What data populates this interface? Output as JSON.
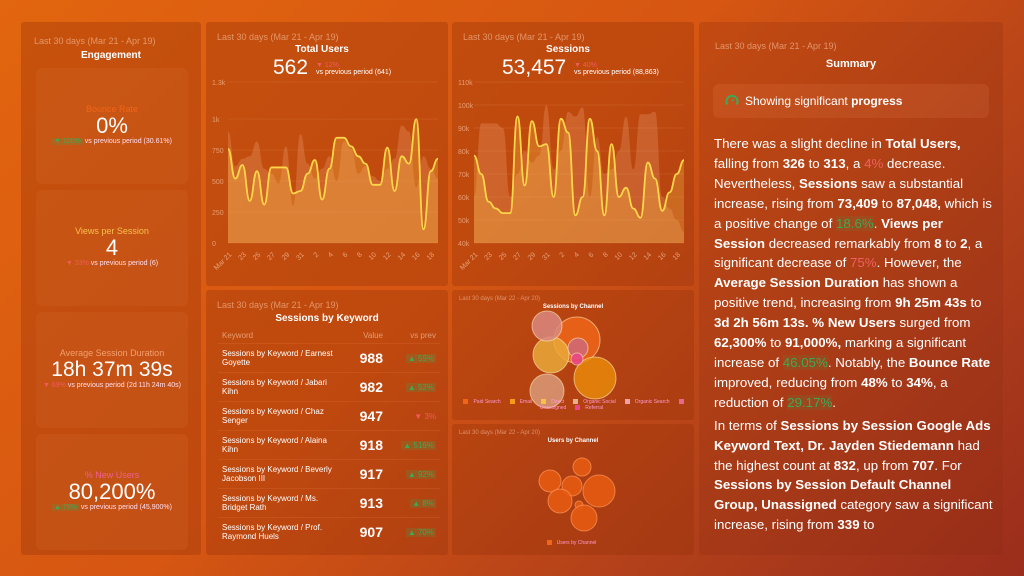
{
  "engagement": {
    "range": "Last 30 days (Mar 21 - Apr 19)",
    "title": "Engagement",
    "kpis": [
      {
        "label": "Bounce Rate",
        "label_color": "#f0651a",
        "value": "0%",
        "delta": "▼ 100%",
        "delta_dir": "good",
        "compare": "vs previous period (30.61%)"
      },
      {
        "label": "Views per Session",
        "label_color": "#f7c04a",
        "value": "4",
        "delta": "▼ 33%",
        "delta_dir": "bad",
        "compare": "vs previous period (6)"
      },
      {
        "label": "Average Session Duration",
        "label_color": "#f4a070",
        "value": "18h 37m 39s",
        "delta": "▼ 69%",
        "delta_dir": "bad",
        "compare": "vs previous period (2d 11h 24m 40s)"
      },
      {
        "label": "% New Users",
        "label_color": "#ef5f90",
        "value": "80,200%",
        "delta": "▲ 75%",
        "delta_dir": "good",
        "compare": "vs previous period (45,900%)"
      }
    ]
  },
  "total_users": {
    "range": "Last 30 days (Mar 21 - Apr 19)",
    "title": "Total Users",
    "value": "562",
    "delta": "▼ 12%",
    "compare": "vs previous period (641)"
  },
  "sessions": {
    "range": "Last 30 days (Mar 21 - Apr 19)",
    "title": "Sessions",
    "value": "53,457",
    "delta": "▼ 40%",
    "compare": "vs previous period (88,863)"
  },
  "chart_data": [
    {
      "type": "line",
      "title": "Total Users",
      "yticks": [
        "0",
        "250",
        "500",
        "750",
        "1k",
        "1.3k"
      ],
      "ylim": [
        0,
        1300
      ],
      "xticks": [
        "Mar 21",
        "23",
        "25",
        "27",
        "29",
        "31",
        "2",
        "4",
        "6",
        "8",
        "10",
        "12",
        "14",
        "16",
        "18"
      ],
      "line_color": "#ffd54a",
      "current": [
        760,
        520,
        630,
        340,
        580,
        310,
        610,
        610,
        610,
        400,
        420,
        560,
        670,
        350,
        600,
        850,
        850,
        780,
        700,
        640,
        470,
        470,
        770,
        420,
        700,
        640,
        1000,
        110,
        580,
        680
      ],
      "previous": [
        900,
        620,
        680,
        700,
        820,
        600,
        560,
        480,
        780,
        300,
        880,
        640,
        520,
        600,
        700,
        500,
        820,
        760,
        560,
        620,
        540,
        500,
        600,
        680,
        950,
        900,
        450,
        700,
        600,
        520
      ]
    },
    {
      "type": "line",
      "title": "Sessions",
      "yticks": [
        "40k",
        "50k",
        "60k",
        "70k",
        "80k",
        "90k",
        "100k",
        "110k"
      ],
      "ylim": [
        40000,
        110000
      ],
      "xticks": [
        "Mar 21",
        "23",
        "25",
        "27",
        "29",
        "31",
        "2",
        "4",
        "6",
        "8",
        "10",
        "12",
        "14",
        "16",
        "18"
      ],
      "line_color": "#ffd54a",
      "current": [
        78000,
        70000,
        58000,
        55000,
        53000,
        53000,
        95000,
        65000,
        93000,
        82000,
        83000,
        60000,
        94000,
        88000,
        52000,
        60000,
        94000,
        80000,
        52000,
        83000,
        60000,
        64000,
        55000,
        51000,
        75000,
        68000,
        54000,
        62000,
        70000,
        76000
      ],
      "previous": [
        60000,
        92000,
        92000,
        92000,
        90000,
        60000,
        70000,
        80000,
        75000,
        78000,
        100000,
        72000,
        80000,
        97000,
        95000,
        99000,
        60000,
        86000,
        70000,
        72000,
        80000,
        95000,
        72000,
        96000,
        96000,
        97000,
        60000,
        55000,
        50000,
        45000
      ]
    }
  ],
  "keywords": {
    "range": "Last 30 days (Mar 21 - Apr 19)",
    "title": "Sessions by Keyword",
    "headers": [
      "Keyword",
      "Value",
      "vs prev"
    ],
    "rows": [
      {
        "keyword": "Sessions by Keyword / Earnest Goyette",
        "value": "988",
        "delta": "▲ 59%",
        "dir": "up"
      },
      {
        "keyword": "Sessions by Keyword / Jabari Kihn",
        "value": "982",
        "delta": "▲ 52%",
        "dir": "up"
      },
      {
        "keyword": "Sessions by Keyword / Chaz Senger",
        "value": "947",
        "delta": "▼ 3%",
        "dir": "down"
      },
      {
        "keyword": "Sessions by Keyword / Alaina Kihn",
        "value": "918",
        "delta": "▲ 516%",
        "dir": "up"
      },
      {
        "keyword": "Sessions by Keyword / Beverly Jacobson III",
        "value": "917",
        "delta": "▲ 92%",
        "dir": "up"
      },
      {
        "keyword": "Sessions by Keyword / Ms. Bridget Rath",
        "value": "913",
        "delta": "▲ 8%",
        "dir": "up"
      },
      {
        "keyword": "Sessions by Keyword / Prof. Raymond Huels",
        "value": "907",
        "delta": "▲ 70%",
        "dir": "up"
      }
    ]
  },
  "sessions_by_channel": {
    "range": "Last 30 days (Mar 22 - Apr 20)",
    "title": "Sessions by Channel",
    "legend": [
      {
        "name": "Paid Search",
        "color": "#f0651a"
      },
      {
        "name": "Email",
        "color": "#f59a1c"
      },
      {
        "name": "Direct",
        "color": "#f7c04a"
      },
      {
        "name": "Organic Social",
        "color": "#e8b088"
      },
      {
        "name": "Organic Search",
        "color": "#f0a0a8"
      },
      {
        "name": "Unassigned",
        "color": "#e06a90"
      },
      {
        "name": "Referral",
        "color": "#e8458a"
      }
    ]
  },
  "users_by_channel": {
    "range": "Last 30 days (Mar 22 - Apr 20)",
    "title": "Users by Channel",
    "legend": [
      {
        "name": "Users by Channel",
        "color": "#f0651a"
      }
    ]
  },
  "summary": {
    "range": "Last 30 days (Mar 21 - Apr 19)",
    "title": "Summary",
    "status_prefix": "Showing significant ",
    "status_bold": "progress",
    "status_icon": "gauge-icon",
    "positive_color": "#3caa55",
    "negative_color": "#f06060",
    "paragraphs": [
      [
        [
          "There was a slight decline in ",
          ""
        ],
        [
          "Total Users,",
          "b"
        ],
        [
          " falling from ",
          ""
        ],
        [
          "326",
          "b"
        ],
        [
          " to ",
          ""
        ],
        [
          "313",
          "b"
        ],
        [
          ", a ",
          ""
        ],
        [
          "4%",
          "r"
        ],
        [
          " decrease. Nevertheless, ",
          ""
        ],
        [
          "Sessions",
          "b"
        ],
        [
          " saw a substantial increase, rising from ",
          ""
        ],
        [
          "73,409",
          "b"
        ],
        [
          " to ",
          ""
        ],
        [
          "87,048,",
          "b"
        ],
        [
          " which is a positive change of ",
          ""
        ],
        [
          "18.6%",
          "g"
        ],
        [
          ". ",
          ""
        ],
        [
          "Views per Session",
          "b"
        ],
        [
          " decreased remarkably from ",
          ""
        ],
        [
          "8",
          "b"
        ],
        [
          " to ",
          ""
        ],
        [
          "2",
          "b"
        ],
        [
          ", a significant decrease of ",
          ""
        ],
        [
          "75%",
          "r"
        ],
        [
          ". However, the ",
          ""
        ],
        [
          "Average Session Duration",
          "b"
        ],
        [
          " has shown a positive trend, increasing from ",
          ""
        ],
        [
          "9h 25m 43s",
          "b"
        ],
        [
          " to ",
          ""
        ],
        [
          "3d 2h 56m 13s. % New Users",
          "b"
        ],
        [
          " surged from ",
          ""
        ],
        [
          "62,300%",
          "b"
        ],
        [
          " to ",
          ""
        ],
        [
          "91,000%,",
          "b"
        ],
        [
          " marking a significant increase of ",
          ""
        ],
        [
          "46.05%",
          "g"
        ],
        [
          ". Notably, the ",
          ""
        ],
        [
          "Bounce Rate",
          "b"
        ],
        [
          " improved, reducing from ",
          ""
        ],
        [
          "48%",
          "b"
        ],
        [
          " to ",
          ""
        ],
        [
          "34%",
          "b"
        ],
        [
          ", a reduction of ",
          ""
        ],
        [
          "29.17%",
          "g"
        ],
        [
          ".",
          ""
        ]
      ],
      [
        [
          "In terms of ",
          ""
        ],
        [
          "Sessions by Session Google Ads Keyword Text, Dr. Jayden Stiedemann",
          "b"
        ],
        [
          " had the highest count at ",
          ""
        ],
        [
          "832",
          "b"
        ],
        [
          ", up from ",
          ""
        ],
        [
          "707",
          "b"
        ],
        [
          ". For ",
          ""
        ],
        [
          "Sessions by Session Default Channel Group, Unassigned",
          "b"
        ],
        [
          " category saw a significant increase, rising from ",
          ""
        ],
        [
          "339",
          "b"
        ],
        [
          " to",
          ""
        ]
      ]
    ]
  }
}
